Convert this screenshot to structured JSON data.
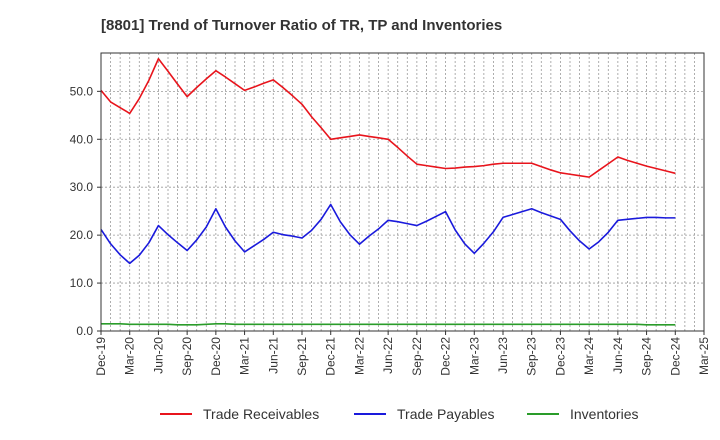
{
  "chart_data": {
    "type": "line",
    "title": "[8801]  Trend of Turnover Ratio of TR, TP and Inventories",
    "xlabel": "",
    "ylabel": "",
    "x_ticks": [
      "Dec-19",
      "Mar-20",
      "Jun-20",
      "Sep-20",
      "Dec-20",
      "Mar-21",
      "Jun-21",
      "Sep-21",
      "Dec-21",
      "Mar-22",
      "Jun-22",
      "Sep-22",
      "Dec-22",
      "Mar-23",
      "Jun-23",
      "Sep-23",
      "Dec-23",
      "Mar-24",
      "Jun-24",
      "Sep-24",
      "Dec-24",
      "Mar-25"
    ],
    "y_ticks": [
      "0.0",
      "10.0",
      "20.0",
      "30.0",
      "40.0",
      "50.0"
    ],
    "ylim": [
      0,
      58
    ],
    "grid": true,
    "legend_position": "bottom",
    "x": [
      "Dec-19",
      "Jan-20",
      "Feb-20",
      "Mar-20",
      "Apr-20",
      "May-20",
      "Jun-20",
      "Jul-20",
      "Aug-20",
      "Sep-20",
      "Oct-20",
      "Nov-20",
      "Dec-20",
      "Jan-21",
      "Feb-21",
      "Mar-21",
      "Apr-21",
      "May-21",
      "Jun-21",
      "Jul-21",
      "Aug-21",
      "Sep-21",
      "Oct-21",
      "Nov-21",
      "Dec-21",
      "Jan-22",
      "Feb-22",
      "Mar-22",
      "Apr-22",
      "May-22",
      "Jun-22",
      "Jul-22",
      "Aug-22",
      "Sep-22",
      "Oct-22",
      "Nov-22",
      "Dec-22",
      "Jan-23",
      "Feb-23",
      "Mar-23",
      "Apr-23",
      "May-23",
      "Jun-23",
      "Jul-23",
      "Aug-23",
      "Sep-23",
      "Oct-23",
      "Nov-23",
      "Dec-23",
      "Jan-24",
      "Feb-24",
      "Mar-24",
      "Apr-24",
      "May-24",
      "Jun-24",
      "Jul-24",
      "Aug-24",
      "Sep-24",
      "Oct-24",
      "Nov-24",
      "Dec-24"
    ],
    "series": [
      {
        "name": "Trade Receivables",
        "color": "#e8141c",
        "values": [
          50.2,
          47.8,
          46.6,
          45.4,
          48.5,
          52.3,
          56.8,
          54.2,
          51.5,
          48.9,
          50.8,
          52.6,
          54.3,
          53.0,
          51.6,
          50.2,
          50.9,
          51.7,
          52.4,
          50.8,
          49.1,
          47.3,
          44.7,
          42.4,
          40.0,
          40.3,
          40.6,
          40.9,
          40.6,
          40.3,
          40.0,
          38.3,
          36.5,
          34.8,
          34.5,
          34.2,
          33.9,
          34.0,
          34.2,
          34.3,
          34.5,
          34.8,
          35.0,
          35.0,
          35.0,
          35.0,
          34.3,
          33.6,
          33.0,
          32.7,
          32.4,
          32.1,
          33.5,
          34.9,
          36.3,
          35.6,
          35.0,
          34.4,
          33.9,
          33.4,
          32.9
        ]
      },
      {
        "name": "Trade Payables",
        "color": "#1a1adc",
        "values": [
          21.2,
          18.2,
          15.9,
          14.1,
          15.8,
          18.4,
          22.0,
          20.1,
          18.4,
          16.8,
          19.0,
          21.7,
          25.5,
          21.7,
          18.8,
          16.5,
          17.8,
          19.1,
          20.6,
          20.1,
          19.8,
          19.4,
          21.0,
          23.3,
          26.4,
          22.8,
          20.1,
          18.1,
          19.8,
          21.3,
          23.1,
          22.8,
          22.4,
          22.0,
          22.9,
          23.9,
          24.9,
          21.1,
          18.2,
          16.2,
          18.3,
          20.7,
          23.7,
          24.3,
          24.9,
          25.5,
          24.7,
          24.0,
          23.3,
          20.9,
          18.8,
          17.1,
          18.6,
          20.6,
          23.1,
          23.3,
          23.5,
          23.7,
          23.7,
          23.6,
          23.6
        ]
      },
      {
        "name": "Inventories",
        "color": "#2a9c2a",
        "values": [
          1.5,
          1.5,
          1.5,
          1.4,
          1.4,
          1.4,
          1.4,
          1.4,
          1.3,
          1.3,
          1.3,
          1.4,
          1.5,
          1.5,
          1.4,
          1.4,
          1.4,
          1.4,
          1.4,
          1.4,
          1.4,
          1.4,
          1.4,
          1.4,
          1.4,
          1.4,
          1.4,
          1.4,
          1.4,
          1.4,
          1.4,
          1.4,
          1.4,
          1.4,
          1.4,
          1.4,
          1.4,
          1.4,
          1.4,
          1.4,
          1.4,
          1.4,
          1.4,
          1.4,
          1.4,
          1.4,
          1.4,
          1.4,
          1.4,
          1.4,
          1.4,
          1.4,
          1.4,
          1.4,
          1.4,
          1.4,
          1.4,
          1.3,
          1.3,
          1.3,
          1.3
        ]
      }
    ]
  }
}
